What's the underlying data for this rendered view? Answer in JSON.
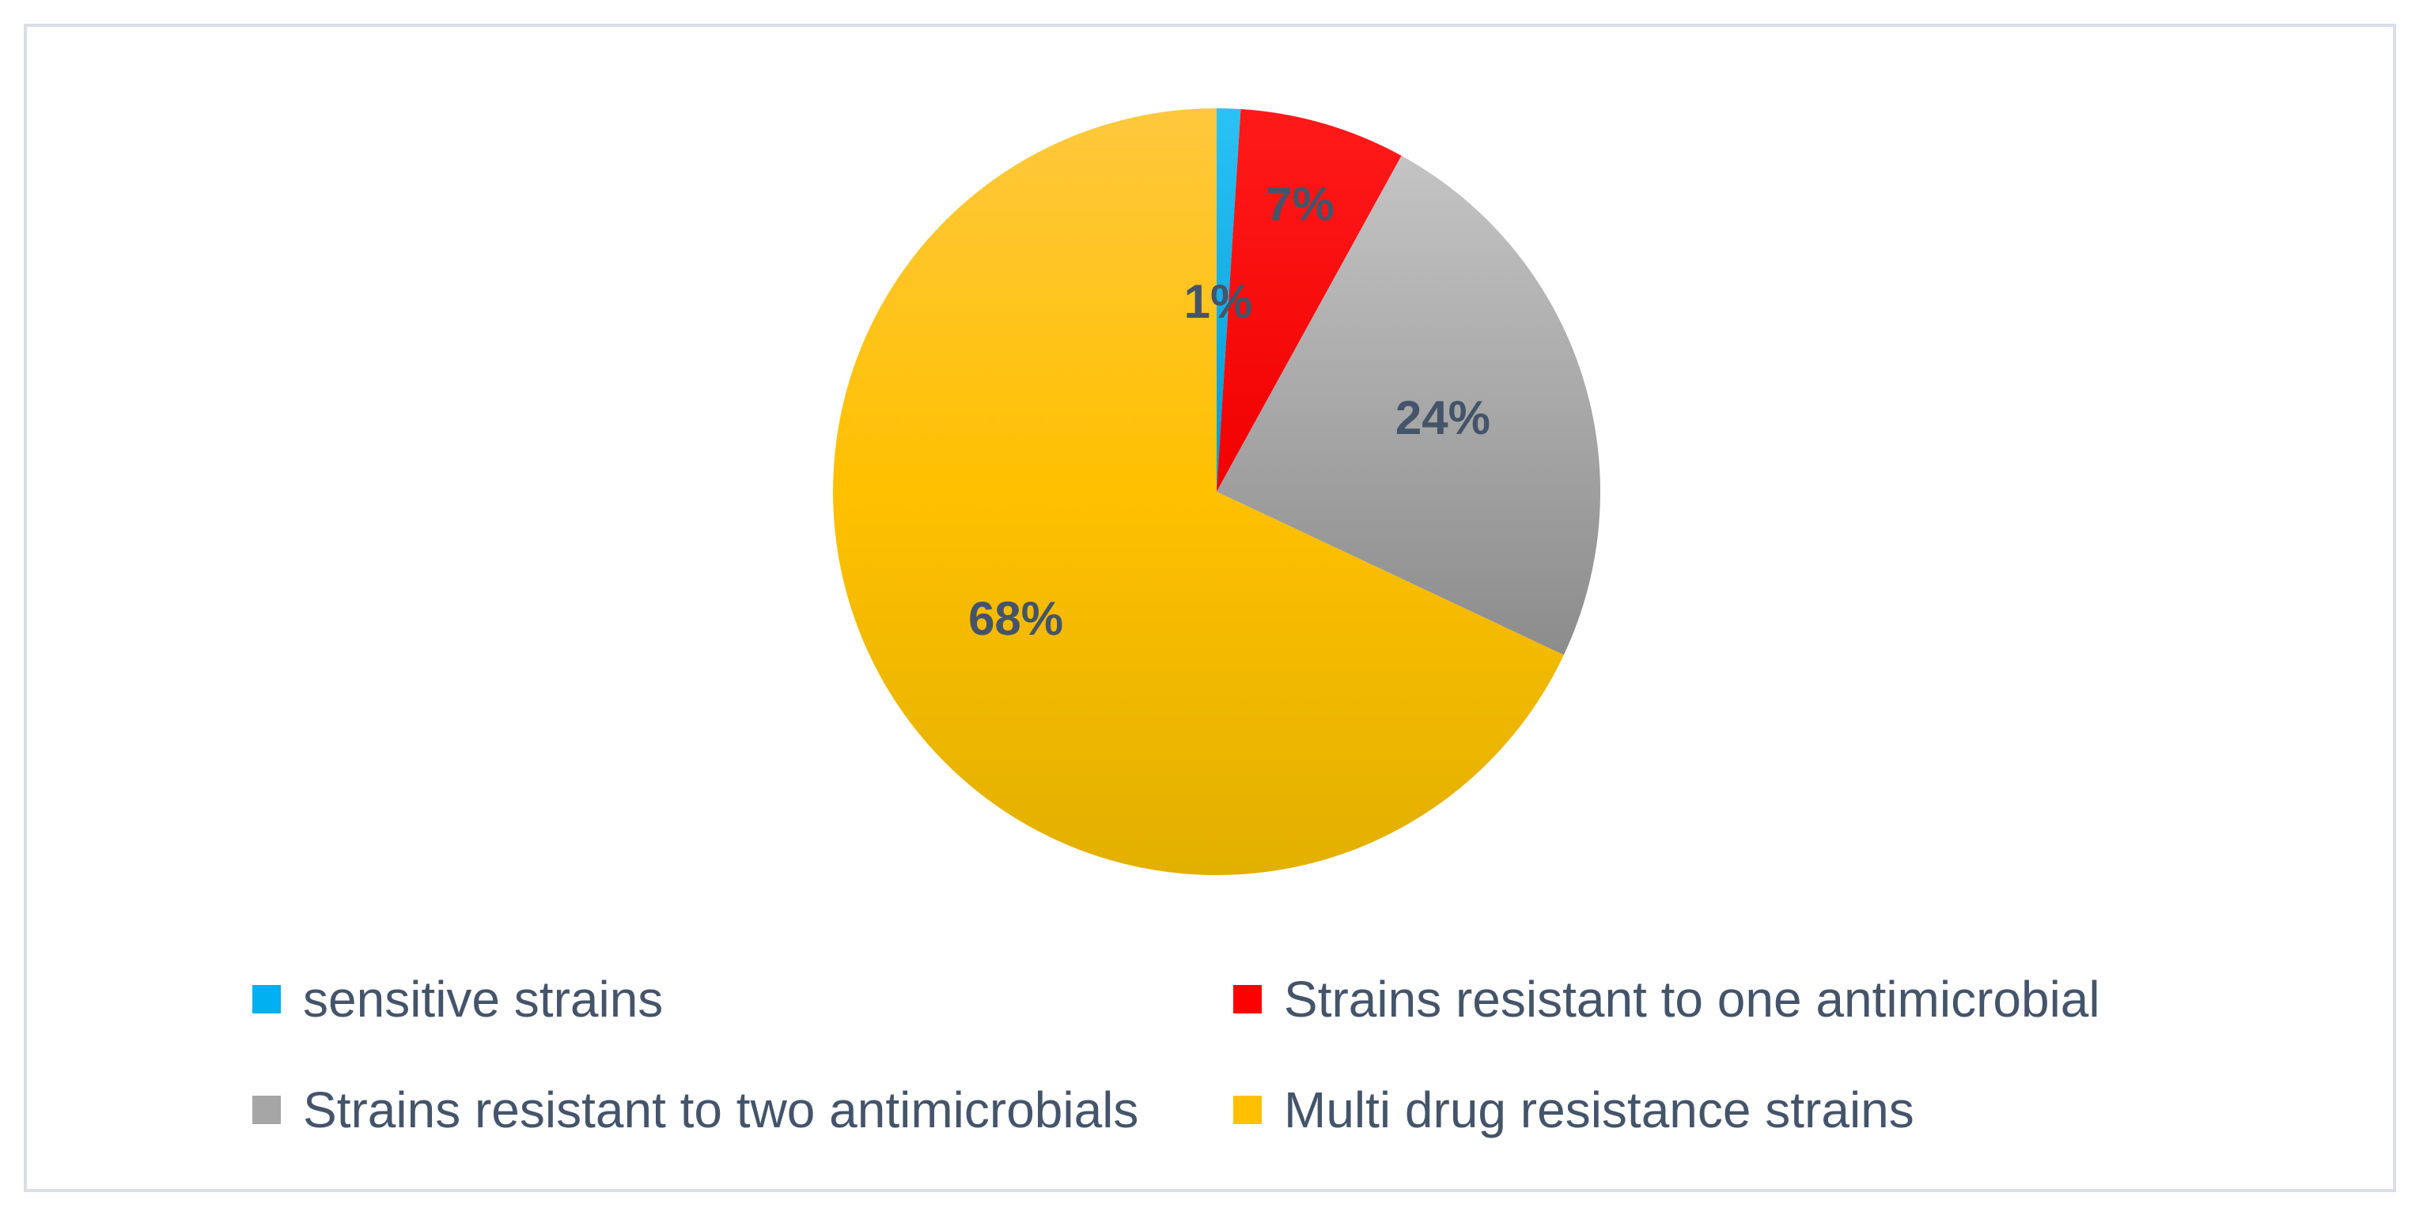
{
  "chart_data": {
    "type": "pie",
    "title": "",
    "slices": [
      {
        "name": "sensitive strains",
        "value": 1,
        "label": "1%",
        "color": "#00b0f0"
      },
      {
        "name": "Strains resistant to one antimicrobial",
        "value": 7,
        "label": "7%",
        "color": "#ff0000"
      },
      {
        "name": "Strains resistant to two antimicrobials",
        "value": 24,
        "label": "24%",
        "color": "#a6a6a6"
      },
      {
        "name": "Multi drug resistance strains",
        "value": 68,
        "label": "68%",
        "color": "#ffc000"
      }
    ],
    "legend_position": "bottom",
    "start_angle": "12 o'clock",
    "direction": "clockwise"
  },
  "legend": {
    "items": [
      {
        "label": "sensitive strains",
        "color": "#00b0f0"
      },
      {
        "label": "Strains resistant to one antimicrobial",
        "color": "#ff0000"
      },
      {
        "label": "Strains resistant to two antimicrobials",
        "color": "#a6a6a6"
      },
      {
        "label": "Multi drug resistance strains",
        "color": "#ffc000"
      }
    ]
  }
}
